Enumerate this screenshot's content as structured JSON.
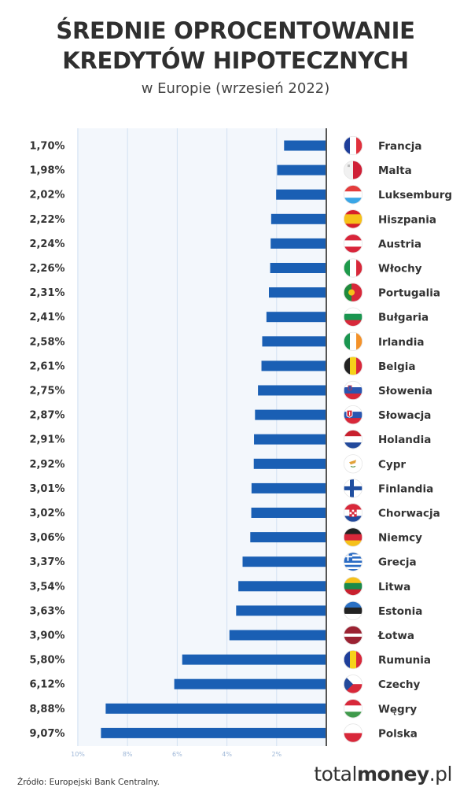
{
  "title_line1": "ŚREDNIE OPROCENTOWANIE",
  "title_line2": "KREDYTÓW HIPOTECZNYCH",
  "subtitle": "w Europie (wrzesień 2022)",
  "source": "Źródło: Europejski Bank Centralny.",
  "brand": {
    "part1": "total",
    "part2": "money",
    "part3": ".pl"
  },
  "colors": {
    "bar": "#1a5fb4",
    "panel": "#f3f7fc",
    "grid": "#d3e1f2",
    "axis": "#555555"
  },
  "chart_data": {
    "type": "bar",
    "orientation": "horizontal",
    "x_direction": "reversed",
    "xlim": [
      0,
      10
    ],
    "xticks": [
      10,
      8,
      6,
      4,
      2
    ],
    "xtick_labels": [
      "10%",
      "8%",
      "6%",
      "4%",
      "2%"
    ],
    "categories": [
      "Francja",
      "Malta",
      "Luksemburg",
      "Hiszpania",
      "Austria",
      "Włochy",
      "Portugalia",
      "Bułgaria",
      "Irlandia",
      "Belgia",
      "Słowenia",
      "Słowacja",
      "Holandia",
      "Cypr",
      "Finlandia",
      "Chorwacja",
      "Niemcy",
      "Grecja",
      "Litwa",
      "Estonia",
      "Łotwa",
      "Rumunia",
      "Czechy",
      "Węgry",
      "Polska"
    ],
    "values": [
      1.7,
      1.98,
      2.02,
      2.22,
      2.24,
      2.26,
      2.31,
      2.41,
      2.58,
      2.61,
      2.75,
      2.87,
      2.91,
      2.92,
      3.01,
      3.02,
      3.06,
      3.37,
      3.54,
      3.63,
      3.9,
      5.8,
      6.12,
      8.88,
      9.07
    ],
    "value_labels": [
      "1,70%",
      "1,98%",
      "2,02%",
      "2,22%",
      "2,24%",
      "2,26%",
      "2,31%",
      "2,41%",
      "2,58%",
      "2,61%",
      "2,75%",
      "2,87%",
      "2,91%",
      "2,92%",
      "3,01%",
      "3,02%",
      "3,06%",
      "3,37%",
      "3,54%",
      "3,63%",
      "3,90%",
      "5,80%",
      "6,12%",
      "8,88%",
      "9,07%"
    ],
    "flags": [
      "fr",
      "mt",
      "lu",
      "es",
      "at",
      "it",
      "pt",
      "bg",
      "ie",
      "be",
      "si",
      "sk",
      "nl",
      "cy",
      "fi",
      "hr",
      "de",
      "gr",
      "lt",
      "ee",
      "lv",
      "ro",
      "cz",
      "hu",
      "pl"
    ],
    "title": "ŚREDNIE OPROCENTOWANIE KREDYTÓW HIPOTECZNYCH",
    "subtitle": "w Europie (wrzesień 2022)",
    "grid": true,
    "legend": "none"
  }
}
